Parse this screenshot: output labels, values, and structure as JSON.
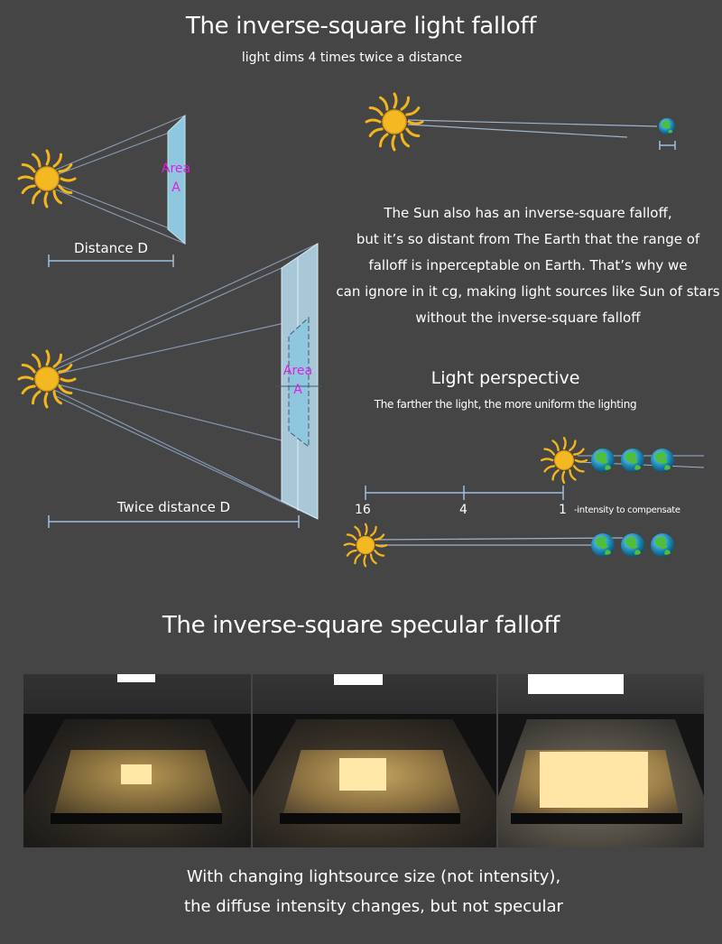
{
  "header": {
    "title": "The inverse-square light falloff",
    "subtitle": "light dims 4 times twice a distance"
  },
  "diagram": {
    "area_word": "Area",
    "area_letter": "A",
    "distance_label": "Distance D",
    "twice_distance_label": "Twice distance D"
  },
  "sun_note": {
    "lines": [
      "The Sun also has an inverse-square falloff,",
      "but it’s so distant from The Earth that the range of",
      "falloff is inperceptable on Earth. That’s why we",
      "can ignore in it cg, making light sources like Sun of stars",
      "without the inverse-square falloff"
    ]
  },
  "perspective": {
    "title": "Light perspective",
    "subtitle": "The farther the light, the more uniform the lighting",
    "scale_ticks": [
      "16",
      "4",
      "1"
    ],
    "compensate_note": "-intensity to compensate"
  },
  "specular": {
    "title": "The inverse-square specular falloff",
    "caption_lines": [
      "With changing lightsource size (not intensity),",
      "the diffuse intensity changes, but not specular"
    ]
  },
  "colors": {
    "background": "#454545",
    "sun": "#f2b51e",
    "area_plane": "#8fc8de",
    "area_label": "#e020e0",
    "ray": "#8fa6c4",
    "ruler": "#9fc0de"
  },
  "icons": [
    "sun-icon",
    "earth-icon"
  ]
}
